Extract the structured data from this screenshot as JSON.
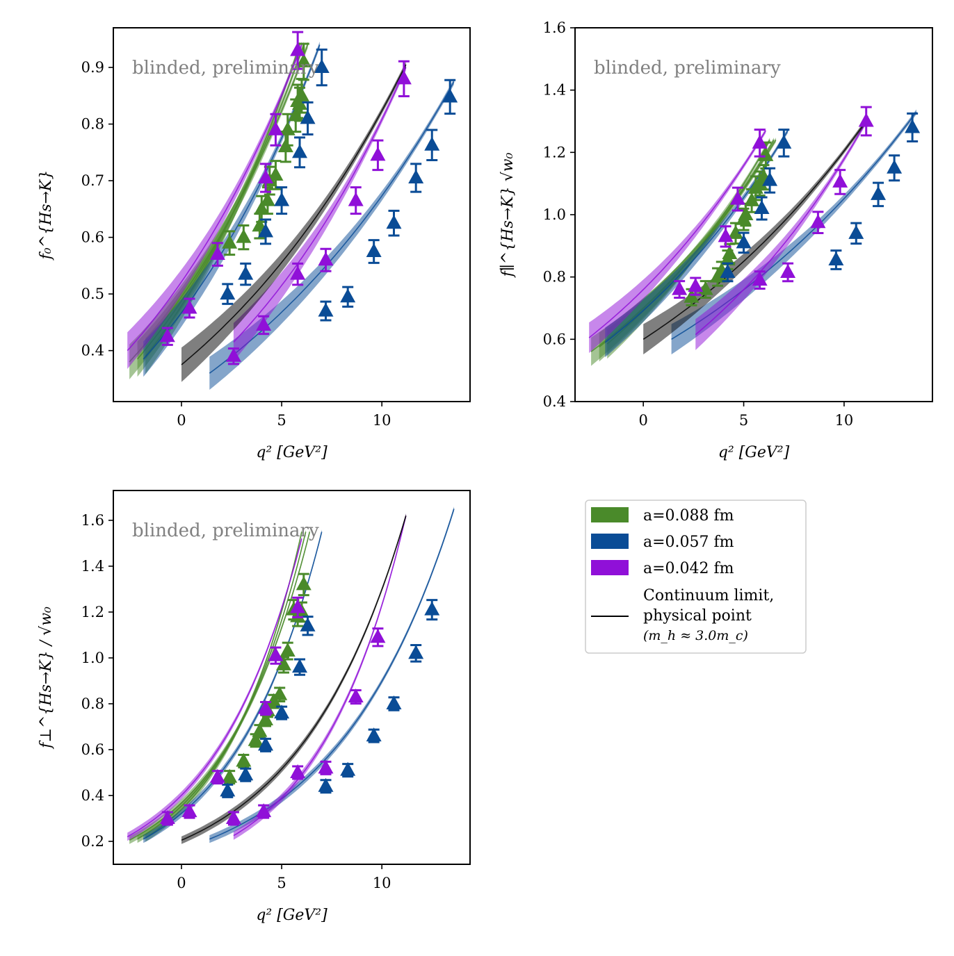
{
  "legend": {
    "entries": [
      {
        "label": "a=0.088 fm",
        "color": "#4a8a2a"
      },
      {
        "label": "a=0.057 fm",
        "color": "#0a4c96"
      },
      {
        "label": "a=0.042 fm",
        "color": "#9010d8"
      }
    ],
    "continuum_line1": "Continuum limit,",
    "continuum_line2": "physical point",
    "continuum_line3": "(m_h ≈ 3.0m_c)",
    "continuum_color": "#000000"
  },
  "chart_data": [
    {
      "type": "scatter",
      "watermark": "blinded, preliminary",
      "xlabel": "q² [GeV²]",
      "ylabel": "f₀^{Hs→K}",
      "xlim": [
        -3.4,
        14.4
      ],
      "ylim": [
        0.31,
        0.97
      ],
      "xticks": [
        0,
        5,
        10
      ],
      "yticks": [
        0.4,
        0.5,
        0.6,
        0.7,
        0.8,
        0.9
      ],
      "ytick_decimals": 1,
      "series": [
        {
          "name": "a=0.088 fm",
          "color": "#4a8a2a",
          "curves": [
            [
              -2.6,
              0.38,
              6.3,
              0.94
            ],
            [
              -2.2,
              0.385,
              6.1,
              0.94
            ],
            [
              -1.8,
              0.39,
              5.9,
              0.94
            ]
          ],
          "points": [
            [
              2.4,
              0.59
            ],
            [
              3.1,
              0.6
            ],
            [
              3.9,
              0.62
            ],
            [
              4.0,
              0.65
            ],
            [
              4.3,
              0.665
            ],
            [
              4.4,
              0.7
            ],
            [
              4.7,
              0.71
            ],
            [
              5.2,
              0.76
            ],
            [
              5.3,
              0.79
            ],
            [
              5.7,
              0.815
            ],
            [
              5.8,
              0.84
            ],
            [
              5.9,
              0.835
            ],
            [
              6.0,
              0.85
            ],
            [
              6.1,
              0.91
            ]
          ]
        },
        {
          "name": "a=0.057 fm",
          "color": "#0a4c96",
          "curves": [
            [
              -1.9,
              0.385,
              6.9,
              0.94
            ],
            [
              1.4,
              0.36,
              13.6,
              0.875
            ]
          ],
          "points": [
            [
              2.3,
              0.5
            ],
            [
              3.2,
              0.535
            ],
            [
              4.2,
              0.61
            ],
            [
              5.0,
              0.665
            ],
            [
              5.9,
              0.75
            ],
            [
              6.3,
              0.81
            ],
            [
              7.0,
              0.9
            ],
            [
              7.2,
              0.47
            ],
            [
              8.3,
              0.495
            ],
            [
              9.6,
              0.575
            ],
            [
              10.6,
              0.625
            ],
            [
              11.7,
              0.705
            ],
            [
              12.5,
              0.763
            ],
            [
              13.4,
              0.848
            ]
          ]
        },
        {
          "name": "a=0.042 fm",
          "color": "#9010d8",
          "curves": [
            [
              -2.7,
              0.4,
              6.0,
              0.94
            ],
            [
              2.6,
              0.415,
              11.2,
              0.9
            ]
          ],
          "points": [
            [
              -0.7,
              0.425
            ],
            [
              0.4,
              0.475
            ],
            [
              1.8,
              0.57
            ],
            [
              2.6,
              0.39
            ],
            [
              4.1,
              0.445
            ],
            [
              4.2,
              0.705
            ],
            [
              4.7,
              0.79
            ],
            [
              5.8,
              0.535
            ],
            [
              5.8,
              0.93
            ],
            [
              7.2,
              0.56
            ],
            [
              8.7,
              0.665
            ],
            [
              9.8,
              0.745
            ],
            [
              11.1,
              0.88
            ]
          ]
        },
        {
          "name": "Continuum limit, physical point",
          "color": "#000000",
          "curves": [
            [
              0.0,
              0.375,
              11.2,
              0.905
            ]
          ],
          "points": []
        }
      ]
    },
    {
      "type": "scatter",
      "watermark": "blinded, preliminary",
      "xlabel": "q² [GeV²]",
      "ylabel": "f∥^{Hs→K} √w₀",
      "xlim": [
        -3.4,
        14.4
      ],
      "ylim": [
        0.4,
        1.6
      ],
      "xticks": [
        0,
        5,
        10
      ],
      "yticks": [
        0.4,
        0.6,
        0.8,
        1.0,
        1.2,
        1.4,
        1.6
      ],
      "ytick_decimals": 1,
      "series": [
        {
          "name": "a=0.088 fm",
          "color": "#4a8a2a",
          "curves": [
            [
              -2.6,
              0.56,
              6.6,
              1.24
            ],
            [
              -2.2,
              0.575,
              6.5,
              1.24
            ],
            [
              -1.8,
              0.585,
              6.3,
              1.24
            ]
          ],
          "points": [
            [
              2.4,
              0.735
            ],
            [
              3.1,
              0.76
            ],
            [
              3.7,
              0.8
            ],
            [
              3.9,
              0.82
            ],
            [
              4.2,
              0.855
            ],
            [
              4.3,
              0.875
            ],
            [
              4.6,
              0.94
            ],
            [
              5.0,
              0.985
            ],
            [
              5.1,
              1.0
            ],
            [
              5.4,
              1.045
            ],
            [
              5.6,
              1.085
            ],
            [
              5.8,
              1.1
            ],
            [
              6.0,
              1.12
            ],
            [
              6.1,
              1.19
            ]
          ]
        },
        {
          "name": "a=0.057 fm",
          "color": "#0a4c96",
          "curves": [
            [
              -1.9,
              0.59,
              7.2,
              1.27
            ],
            [
              1.4,
              0.6,
              13.6,
              1.33
            ]
          ],
          "points": [
            [
              4.2,
              0.815
            ],
            [
              5.0,
              0.91
            ],
            [
              5.9,
              1.02
            ],
            [
              6.3,
              1.11
            ],
            [
              7.0,
              1.23
            ],
            [
              9.6,
              0.855
            ],
            [
              10.6,
              0.94
            ],
            [
              11.7,
              1.065
            ],
            [
              12.5,
              1.15
            ],
            [
              13.4,
              1.28
            ]
          ]
        },
        {
          "name": "a=0.042 fm",
          "color": "#9010d8",
          "curves": [
            [
              -2.7,
              0.605,
              6.1,
              1.27
            ],
            [
              2.6,
              0.615,
              11.2,
              1.31
            ]
          ],
          "points": [
            [
              1.8,
              0.76
            ],
            [
              2.6,
              0.77
            ],
            [
              4.1,
              0.93
            ],
            [
              4.7,
              1.05
            ],
            [
              5.8,
              0.79
            ],
            [
              5.8,
              1.23
            ],
            [
              7.2,
              0.815
            ],
            [
              8.7,
              0.975
            ],
            [
              9.8,
              1.105
            ],
            [
              11.1,
              1.3
            ]
          ]
        },
        {
          "name": "Continuum limit, physical point",
          "color": "#000000",
          "curves": [
            [
              0.0,
              0.6,
              11.2,
              1.31
            ]
          ],
          "points": []
        }
      ]
    },
    {
      "type": "scatter",
      "watermark": "blinded, preliminary",
      "xlabel": "q² [GeV²]",
      "ylabel": "f⊥^{Hs→K} / √w₀",
      "xlim": [
        -3.4,
        14.4
      ],
      "ylim": [
        0.1,
        1.73
      ],
      "xticks": [
        0,
        5,
        10
      ],
      "yticks": [
        0.2,
        0.4,
        0.6,
        0.8,
        1.0,
        1.2,
        1.4,
        1.6
      ],
      "ytick_decimals": 1,
      "series": [
        {
          "name": "a=0.088 fm",
          "color": "#4a8a2a",
          "curves": [
            [
              -2.6,
              0.205,
              6.4,
              1.55
            ],
            [
              -2.2,
              0.21,
              6.2,
              1.55
            ],
            [
              -1.8,
              0.215,
              6.0,
              1.55
            ]
          ],
          "points": [
            [
              2.4,
              0.48
            ],
            [
              3.1,
              0.55
            ],
            [
              3.7,
              0.64
            ],
            [
              3.9,
              0.68
            ],
            [
              4.2,
              0.73
            ],
            [
              4.3,
              0.77
            ],
            [
              4.6,
              0.81
            ],
            [
              4.9,
              0.84
            ],
            [
              5.1,
              0.97
            ],
            [
              5.3,
              1.03
            ],
            [
              5.6,
              1.21
            ],
            [
              5.8,
              1.18
            ],
            [
              6.0,
              1.2
            ],
            [
              6.1,
              1.32
            ]
          ]
        },
        {
          "name": "a=0.057 fm",
          "color": "#0a4c96",
          "curves": [
            [
              -1.9,
              0.21,
              7.0,
              1.55
            ],
            [
              1.4,
              0.21,
              13.6,
              1.65
            ]
          ],
          "points": [
            [
              2.3,
              0.42
            ],
            [
              3.2,
              0.49
            ],
            [
              4.2,
              0.62
            ],
            [
              5.0,
              0.76
            ],
            [
              5.9,
              0.96
            ],
            [
              6.3,
              1.14
            ],
            [
              7.2,
              0.44
            ],
            [
              8.3,
              0.51
            ],
            [
              9.6,
              0.66
            ],
            [
              10.6,
              0.8
            ],
            [
              11.7,
              1.02
            ],
            [
              12.5,
              1.21
            ]
          ]
        },
        {
          "name": "a=0.042 fm",
          "color": "#9010d8",
          "curves": [
            [
              -2.7,
              0.22,
              6.0,
              1.52
            ],
            [
              2.6,
              0.225,
              11.2,
              1.62
            ]
          ],
          "points": [
            [
              -0.7,
              0.3
            ],
            [
              0.4,
              0.33
            ],
            [
              1.8,
              0.48
            ],
            [
              2.6,
              0.3
            ],
            [
              4.1,
              0.33
            ],
            [
              4.2,
              0.78
            ],
            [
              4.7,
              1.01
            ],
            [
              5.8,
              0.5
            ],
            [
              5.8,
              1.22
            ],
            [
              7.2,
              0.52
            ],
            [
              8.7,
              0.83
            ],
            [
              9.8,
              1.09
            ]
          ]
        },
        {
          "name": "Continuum limit, physical point",
          "color": "#000000",
          "curves": [
            [
              0.0,
              0.205,
              11.2,
              1.62
            ]
          ],
          "points": []
        }
      ]
    }
  ]
}
